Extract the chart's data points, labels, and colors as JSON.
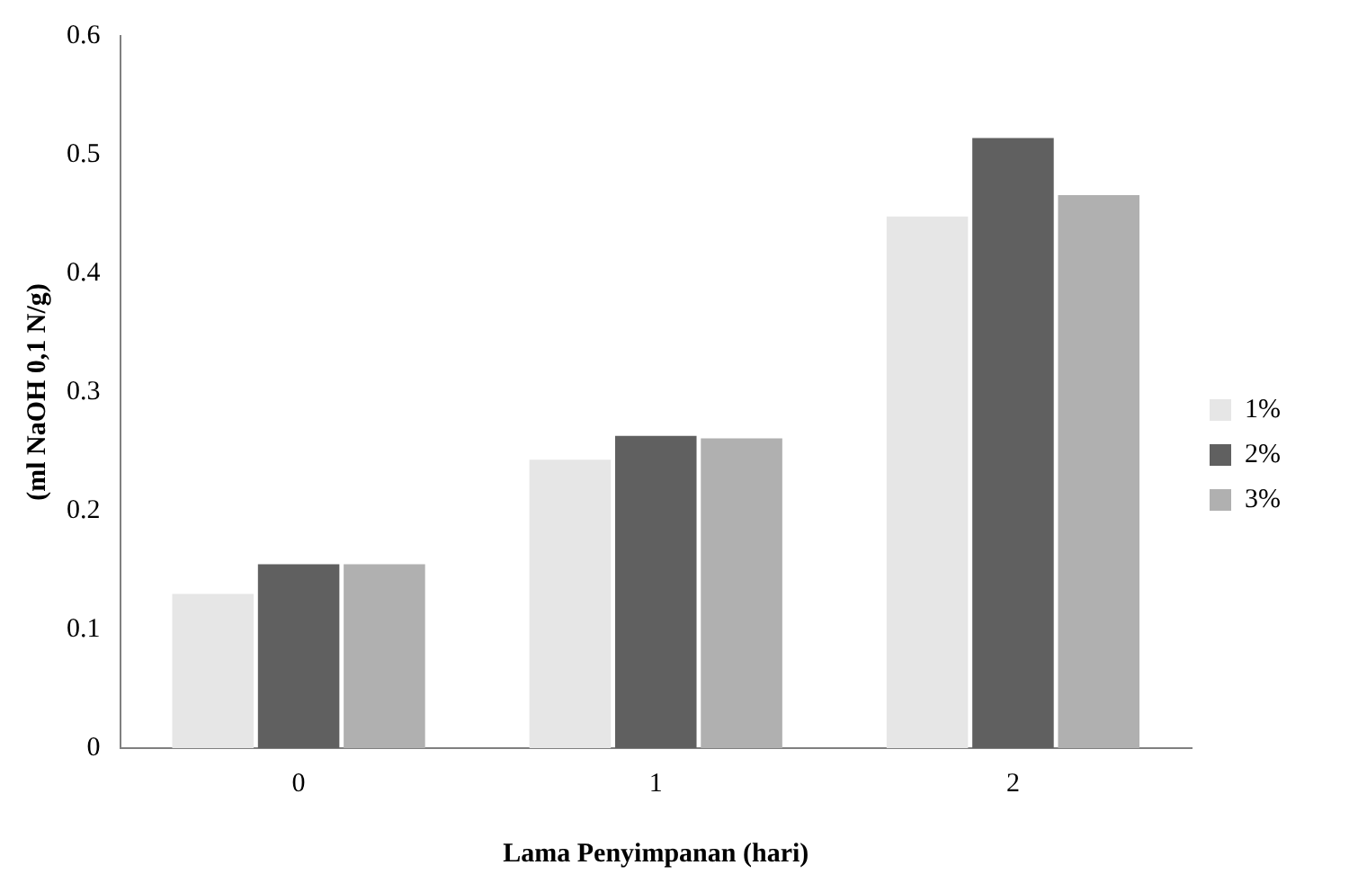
{
  "chart_data": {
    "type": "bar",
    "xlabel": "Lama Penyimpanan (hari)",
    "ylabel": "(ml NaOH 0,1 N/g)",
    "categories": [
      "0",
      "1",
      "2"
    ],
    "series": [
      {
        "name": "1%",
        "color": "#e6e6e6",
        "values": [
          0.13,
          0.243,
          0.448
        ]
      },
      {
        "name": "2%",
        "color": "#606060",
        "values": [
          0.155,
          0.263,
          0.514
        ]
      },
      {
        "name": "3%",
        "color": "#b0b0b0",
        "values": [
          0.155,
          0.261,
          0.466
        ]
      }
    ],
    "ylim": [
      0,
      0.6
    ],
    "yticks": [
      0,
      0.1,
      0.2,
      0.3,
      0.4,
      0.5,
      0.6
    ],
    "grid": false,
    "legend": "right"
  }
}
